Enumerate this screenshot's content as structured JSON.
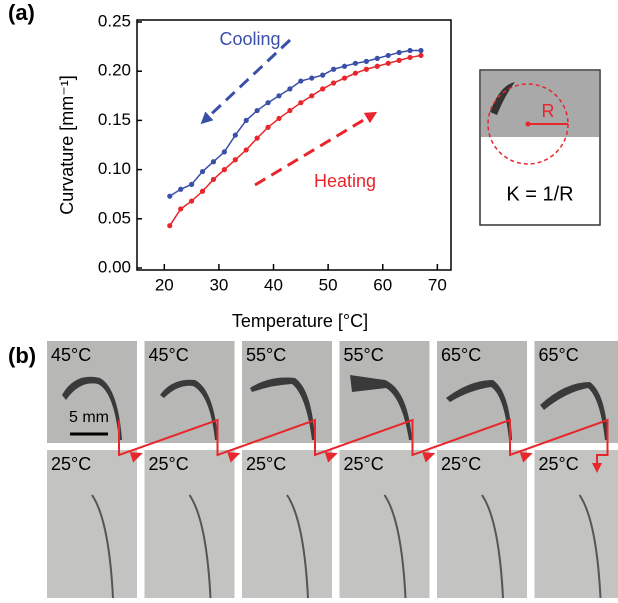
{
  "chart_data": {
    "type": "line",
    "panel_label": "(a)",
    "x_label": "Temperature [°C]",
    "y_label": "Curvature [mm⁻¹]",
    "x": [
      21,
      23,
      25,
      27,
      29,
      31,
      33,
      35,
      37,
      39,
      41,
      43,
      45,
      47,
      49,
      51,
      53,
      55,
      57,
      59,
      61,
      63,
      65,
      67
    ],
    "series": [
      {
        "name": "Cooling",
        "color": "#3a4fa8",
        "values": [
          0.073,
          0.08,
          0.085,
          0.098,
          0.108,
          0.118,
          0.135,
          0.15,
          0.16,
          0.168,
          0.175,
          0.182,
          0.19,
          0.193,
          0.196,
          0.202,
          0.205,
          0.208,
          0.21,
          0.213,
          0.216,
          0.219,
          0.221,
          0.221
        ]
      },
      {
        "name": "Heating",
        "color": "#e8262b",
        "values": [
          0.043,
          0.06,
          0.068,
          0.078,
          0.09,
          0.1,
          0.11,
          0.12,
          0.132,
          0.143,
          0.152,
          0.16,
          0.168,
          0.175,
          0.182,
          0.188,
          0.193,
          0.198,
          0.202,
          0.205,
          0.208,
          0.211,
          0.214,
          0.216
        ]
      }
    ],
    "xlim": [
      15,
      72.5
    ],
    "ylim": [
      0,
      0.25
    ],
    "xticks": [
      20,
      30,
      40,
      50,
      60,
      70
    ],
    "yticks": [
      {
        "value": 0,
        "label": "0.00"
      },
      0.05,
      {
        "value": 0.1,
        "label": "0.10"
      },
      0.15,
      {
        "value": 0.2,
        "label": "0.20"
      },
      0.25
    ]
  },
  "inset": {
    "radius_label": "R",
    "formula": "K = 1/R"
  },
  "photos": {
    "panel_label": "(b)",
    "scale_bar": "5 mm",
    "top": [
      "45°C",
      "45°C",
      "55°C",
      "55°C",
      "65°C",
      "65°C"
    ],
    "bottom": [
      "25°C",
      "25°C",
      "25°C",
      "25°C",
      "25°C",
      "25°C"
    ]
  }
}
